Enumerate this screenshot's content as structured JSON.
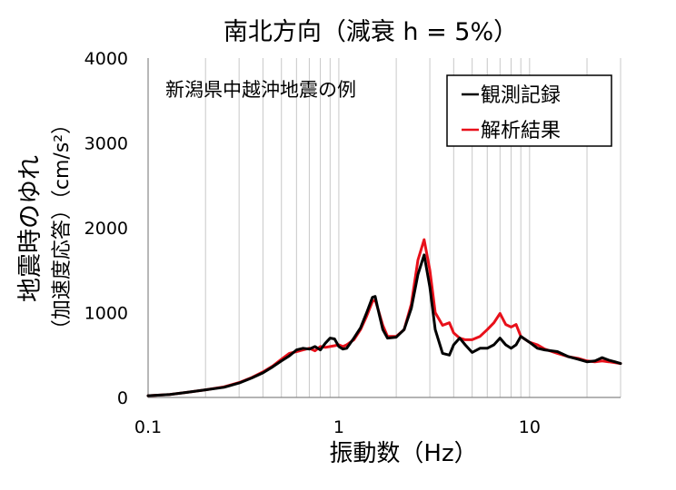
{
  "chart_data": {
    "type": "line",
    "title": "南北方向（減衰 h = 5%）",
    "annotation": "新潟県中越沖地震の例",
    "xlabel": "振動数（Hz）",
    "ylabel_line1": "地震時のゆれ",
    "ylabel_line2": "（加速度応答）（cm/s²）",
    "xscale": "log",
    "xlim": [
      0.1,
      30
    ],
    "ylim": [
      0,
      4000
    ],
    "x_ticks": [
      {
        "value": 0.1,
        "label": "0.1"
      },
      {
        "value": 1,
        "label": "1"
      },
      {
        "value": 10,
        "label": "10"
      }
    ],
    "y_ticks": [
      {
        "value": 0,
        "label": "0"
      },
      {
        "value": 1000,
        "label": "1000"
      },
      {
        "value": 2000,
        "label": "2000"
      },
      {
        "value": 3000,
        "label": "3000"
      },
      {
        "value": 4000,
        "label": "4000"
      }
    ],
    "grid": "vertical log gridlines",
    "legend_position": "top-right",
    "series": [
      {
        "name": "観測記録",
        "color": "#000000",
        "x": [
          0.1,
          0.13,
          0.16,
          0.2,
          0.25,
          0.3,
          0.35,
          0.4,
          0.45,
          0.5,
          0.55,
          0.6,
          0.65,
          0.7,
          0.75,
          0.8,
          0.85,
          0.9,
          0.95,
          1.0,
          1.05,
          1.1,
          1.2,
          1.3,
          1.4,
          1.5,
          1.55,
          1.6,
          1.7,
          1.8,
          2.0,
          2.2,
          2.4,
          2.6,
          2.8,
          3.0,
          3.2,
          3.5,
          3.8,
          4.0,
          4.3,
          4.6,
          5.0,
          5.5,
          6.0,
          6.5,
          7.0,
          7.5,
          8.0,
          8.5,
          9.0,
          10,
          11,
          12,
          14,
          16,
          18,
          20,
          22,
          24,
          26,
          28,
          30
        ],
        "y": [
          20,
          35,
          60,
          90,
          120,
          170,
          230,
          290,
          360,
          430,
          490,
          560,
          580,
          570,
          600,
          560,
          640,
          700,
          690,
          600,
          570,
          580,
          700,
          820,
          1000,
          1180,
          1190,
          1050,
          800,
          700,
          710,
          800,
          1050,
          1450,
          1680,
          1300,
          800,
          520,
          500,
          620,
          700,
          620,
          530,
          580,
          580,
          620,
          700,
          620,
          580,
          620,
          720,
          650,
          580,
          560,
          540,
          480,
          450,
          420,
          430,
          470,
          440,
          420,
          400
        ]
      },
      {
        "name": "解析結果",
        "color": "#e8101a",
        "x": [
          0.1,
          0.13,
          0.16,
          0.2,
          0.25,
          0.3,
          0.35,
          0.4,
          0.45,
          0.5,
          0.55,
          0.6,
          0.65,
          0.7,
          0.75,
          0.8,
          0.85,
          0.9,
          0.95,
          1.0,
          1.05,
          1.1,
          1.2,
          1.3,
          1.4,
          1.5,
          1.55,
          1.6,
          1.7,
          1.8,
          2.0,
          2.2,
          2.4,
          2.6,
          2.8,
          3.0,
          3.2,
          3.5,
          3.8,
          4.0,
          4.3,
          4.6,
          5.0,
          5.5,
          6.0,
          6.5,
          7.0,
          7.5,
          8.0,
          8.5,
          9.0,
          10,
          11,
          12,
          14,
          16,
          18,
          20,
          22,
          24,
          26,
          28,
          30
        ],
        "y": [
          20,
          35,
          60,
          90,
          125,
          175,
          235,
          300,
          370,
          450,
          520,
          540,
          560,
          580,
          550,
          600,
          590,
          600,
          610,
          620,
          600,
          620,
          680,
          800,
          960,
          1130,
          1150,
          1050,
          850,
          720,
          720,
          800,
          1100,
          1620,
          1860,
          1500,
          1000,
          850,
          880,
          760,
          700,
          680,
          680,
          720,
          800,
          880,
          990,
          860,
          830,
          860,
          720,
          650,
          620,
          570,
          520,
          480,
          460,
          430,
          420,
          430,
          420,
          410,
          400
        ]
      }
    ]
  }
}
